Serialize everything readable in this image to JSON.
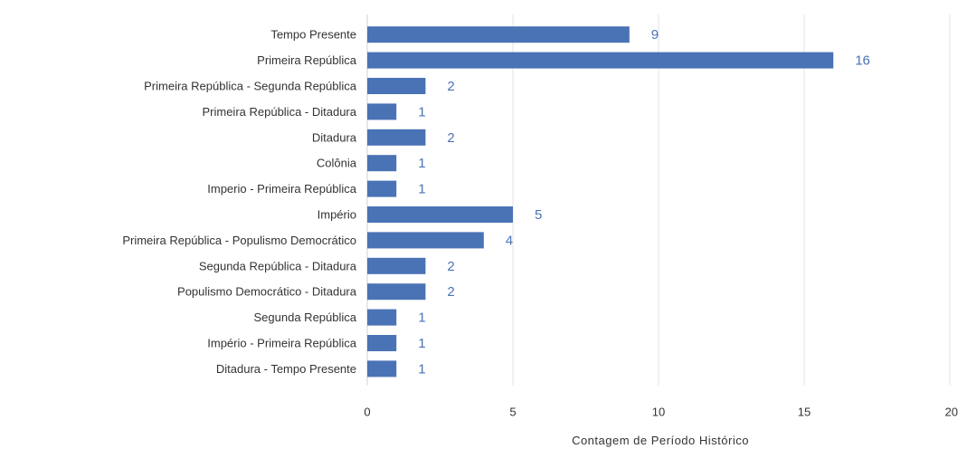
{
  "chart_data": {
    "type": "bar",
    "orientation": "horizontal",
    "categories": [
      "Tempo Presente",
      "Primeira República",
      "Primeira República - Segunda República",
      "Primeira República -  Ditadura",
      "Ditadura",
      "Colônia",
      "Imperio - Primeira República",
      "Império",
      "Primeira República - Populismo Democrático",
      "Segunda República - Ditadura",
      "Populismo Democrático - Ditadura",
      "Segunda República",
      "Império - Primeira República",
      "Ditadura - Tempo Presente"
    ],
    "values": [
      9,
      16,
      2,
      1,
      2,
      1,
      1,
      5,
      4,
      2,
      2,
      1,
      1,
      1
    ],
    "value_labels": [
      "9",
      "16",
      "2",
      "1",
      "2",
      "1",
      "1",
      "5",
      "4",
      "2",
      "2",
      "1",
      "1",
      "1"
    ],
    "xticks": [
      0,
      5,
      10,
      15,
      20
    ],
    "xtick_labels": [
      "0",
      "5",
      "10",
      "15",
      "20"
    ],
    "xlim": [
      0,
      20
    ],
    "xlabel": "Contagem de Período Histórico",
    "ylabel": "",
    "title": "",
    "grid": true,
    "legend": "none",
    "colors": {
      "bar": "#4a73b5",
      "value_label": "#4a73b5",
      "grid": "#e3e3e3"
    }
  }
}
